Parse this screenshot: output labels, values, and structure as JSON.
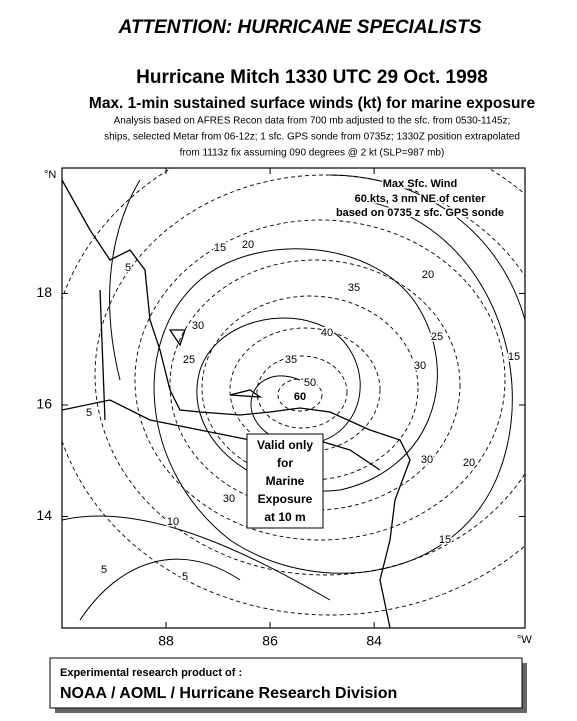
{
  "header": {
    "banner": "ATTENTION: HURRICANE SPECIALISTS",
    "title": "Hurricane Mitch 1330 UTC 29 Oct. 1998",
    "subtitle": "Max. 1-min sustained surface winds (kt) for marine exposure",
    "notes": [
      "Analysis based on AFRES Recon data from 700 mb adjusted to the sfc. from 0530-1145z;",
      "ships, selected Metar from 06-12z; 1 sfc. GPS sonde from 0735z;    1330Z  position extrapolated",
      "from 1113z fix assuming 090 degrees @ 2 kt   (SLP=987 mb)"
    ]
  },
  "map": {
    "lon_lim": [
      90,
      81.1
    ],
    "lat_lim": [
      12,
      20.25
    ],
    "lon_ticks": [
      88,
      86,
      84
    ],
    "lat ticks_placeholder": null,
    "lat_ticks": [
      18,
      16,
      14
    ],
    "lat_unit": "°N",
    "lon_unit": "°W",
    "contour_labels": [
      5,
      15,
      20,
      20,
      35,
      30,
      25,
      40,
      25,
      30,
      35,
      50,
      15,
      20,
      30,
      5,
      10,
      5,
      5,
      30,
      15
    ],
    "center_label": 60,
    "max_wind": [
      "Max Sfc. Wind",
      "60 kts, 3 nm NE of center",
      "based on 0735 z sfc. GPS sonde"
    ],
    "validity": [
      "Valid only",
      "for",
      "Marine",
      "Exposure",
      "at 10 m"
    ]
  },
  "footer": {
    "line1": "Experimental research product of :",
    "line2": "NOAA / AOML / Hurricane Research Division"
  }
}
